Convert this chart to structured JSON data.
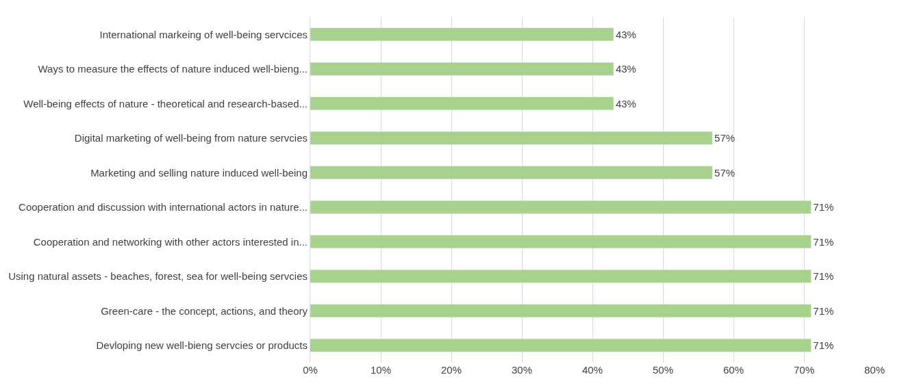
{
  "chart_data": {
    "type": "bar",
    "orientation": "horizontal",
    "categories": [
      "International markeing of well-being servcices",
      "Ways to measure the effects of nature induced well-bieng...",
      "Well-being effects of nature - theoretical and research-based...",
      "Digital marketing of well-being from nature servcies",
      "Marketing and selling nature induced well-being",
      "Cooperation and discussion with international actors in nature...",
      "Cooperation and networking with other actors interested in...",
      "Using natural assets - beaches, forest, sea for well-being servcies",
      "Green-care - the concept, actions, and theory",
      "Devloping new well-bieng servcies or products"
    ],
    "values": [
      43,
      43,
      43,
      57,
      57,
      71,
      71,
      71,
      71,
      71
    ],
    "value_labels": [
      "43%",
      "43%",
      "43%",
      "57%",
      "57%",
      "71%",
      "71%",
      "71%",
      "71%",
      "71%"
    ],
    "color": "#a9d18e",
    "xlim": [
      0,
      80
    ],
    "xticks": [
      {
        "value": 0,
        "label": "0%"
      },
      {
        "value": 10,
        "label": "10%"
      },
      {
        "value": 20,
        "label": "20%"
      },
      {
        "value": 30,
        "label": "30%"
      },
      {
        "value": 40,
        "label": "40%"
      },
      {
        "value": 50,
        "label": "50%"
      },
      {
        "value": 60,
        "label": "60%"
      },
      {
        "value": 70,
        "label": "70%"
      },
      {
        "value": 80,
        "label": "80%"
      }
    ],
    "grid": "x"
  }
}
